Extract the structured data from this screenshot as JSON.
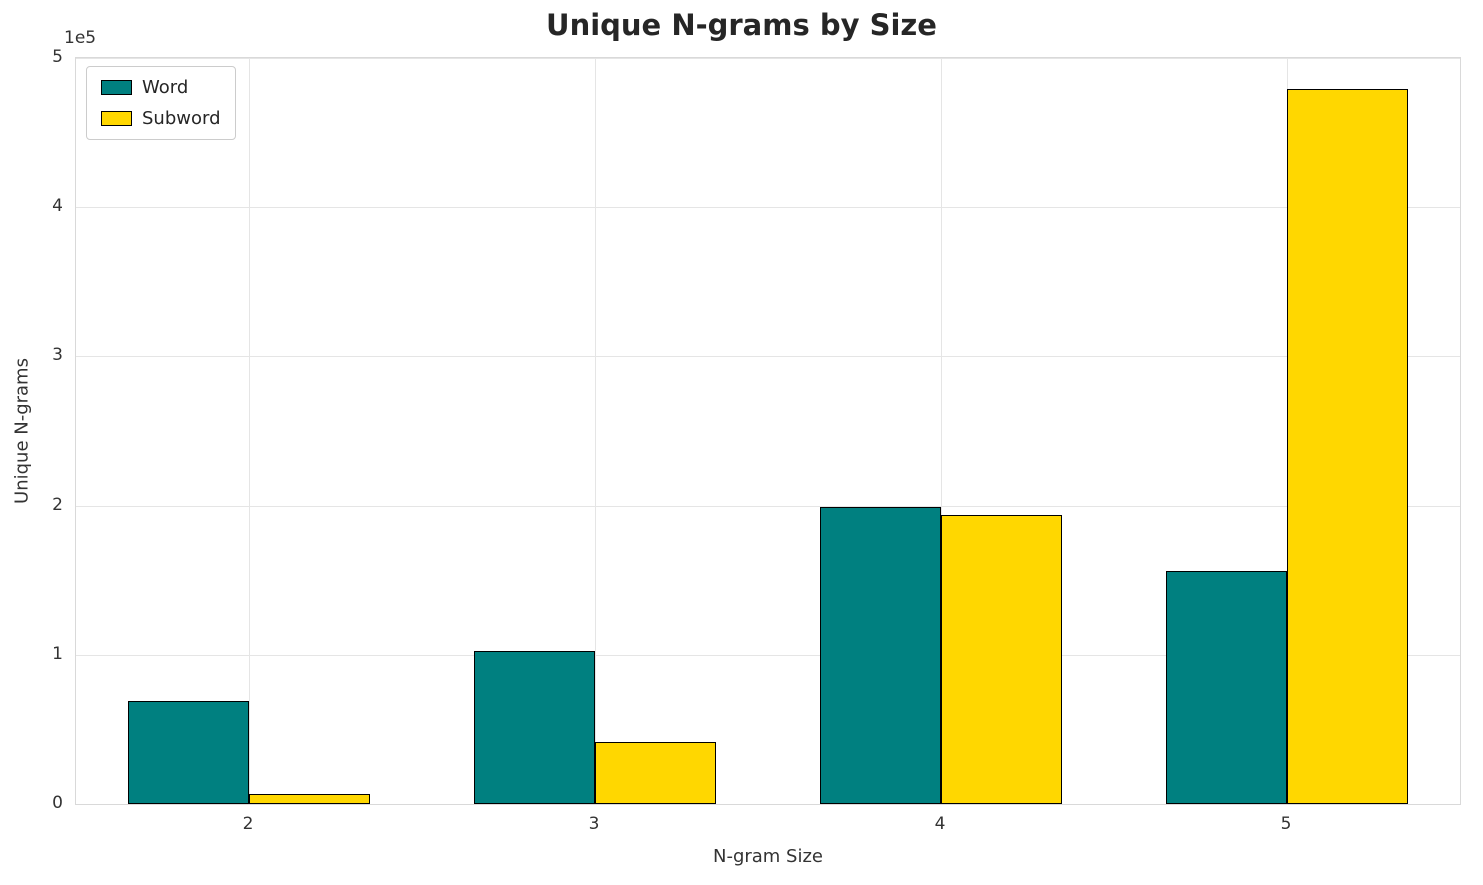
{
  "chart_data": {
    "type": "bar",
    "title": "Unique N-grams by Size",
    "xlabel": "N-gram Size",
    "ylabel": "Unique N-grams",
    "offset_text": "1e5",
    "categories": [
      "2",
      "3",
      "4",
      "5"
    ],
    "series": [
      {
        "name": "Word",
        "color": "#008080",
        "values": [
          69000,
          102500,
          199000,
          156000
        ]
      },
      {
        "name": "Subword",
        "color": "#FFD700",
        "values": [
          6500,
          41500,
          193500,
          479000
        ]
      }
    ],
    "ylim": [
      0,
      500000
    ],
    "yticks": [
      0,
      100000,
      200000,
      300000,
      400000,
      500000
    ],
    "ytick_labels": [
      "0",
      "1",
      "2",
      "3",
      "4",
      "5"
    ],
    "grid": true,
    "legend_position": "upper left",
    "bar_edge_color": "#000000",
    "bar_width_fraction": 0.35
  }
}
